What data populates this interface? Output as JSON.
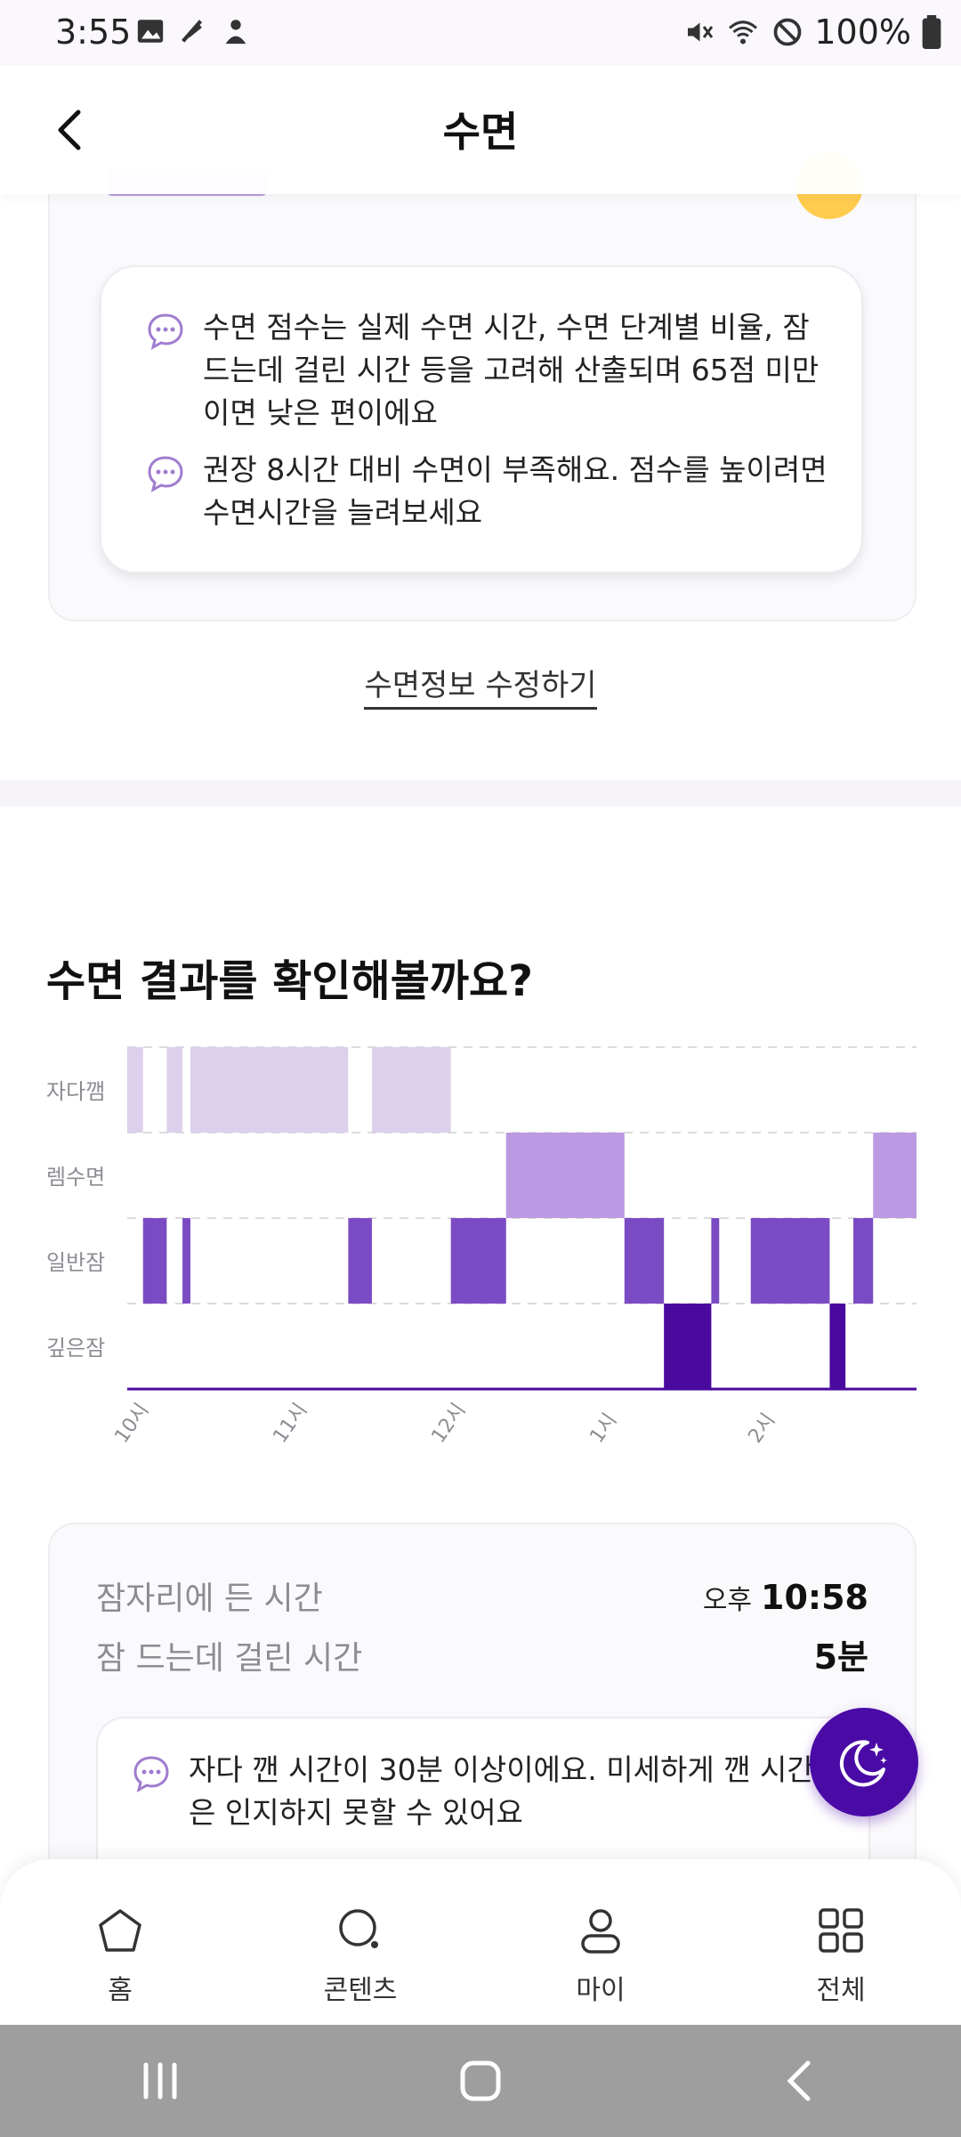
{
  "status_bar": {
    "time": "3:55",
    "battery": "100%"
  },
  "header": {
    "title": "수면"
  },
  "score_card": {
    "tips": [
      "수면 점수는 실제 수면 시간, 수면 단계별 비율, 잠드는데 걸린 시간 등을 고려해 산출되며 65점 미만이면 낮은 편이에요",
      "권장 8시간 대비 수면이 부족해요. 점수를 높이려면 수면시간을 늘려보세요"
    ]
  },
  "edit_link": "수면정보 수정하기",
  "result_section": {
    "title": "수면 결과를 확인해볼까요?"
  },
  "chart_data": {
    "type": "hypnogram",
    "stages": [
      "자다깸",
      "렘수면",
      "일반잠",
      "깊은잠"
    ],
    "x_ticks": [
      "10시",
      "11시",
      "12시",
      "1시",
      "2시"
    ],
    "segments": [
      {
        "stage": "자다깸",
        "start": 0.0,
        "end": 0.02
      },
      {
        "stage": "일반잠",
        "start": 0.02,
        "end": 0.05
      },
      {
        "stage": "자다깸",
        "start": 0.05,
        "end": 0.07
      },
      {
        "stage": "일반잠",
        "start": 0.07,
        "end": 0.08
      },
      {
        "stage": "자다깸",
        "start": 0.08,
        "end": 0.28
      },
      {
        "stage": "일반잠",
        "start": 0.28,
        "end": 0.31
      },
      {
        "stage": "자다깸",
        "start": 0.31,
        "end": 0.41
      },
      {
        "stage": "일반잠",
        "start": 0.41,
        "end": 0.48
      },
      {
        "stage": "렘수면",
        "start": 0.48,
        "end": 0.63
      },
      {
        "stage": "일반잠",
        "start": 0.63,
        "end": 0.68
      },
      {
        "stage": "깊은잠",
        "start": 0.68,
        "end": 0.74
      },
      {
        "stage": "일반잠",
        "start": 0.74,
        "end": 0.75
      },
      {
        "stage": "일반잠",
        "start": 0.79,
        "end": 0.89
      },
      {
        "stage": "깊은잠",
        "start": 0.89,
        "end": 0.91
      },
      {
        "stage": "일반잠",
        "start": 0.92,
        "end": 0.945
      },
      {
        "stage": "렘수면",
        "start": 0.945,
        "end": 1.0
      }
    ],
    "colors": {
      "자다깸": "#ddd0ec",
      "렘수면": "#bb9ae3",
      "일반잠": "#7b4bc4",
      "깊은잠": "#4a0a9e"
    }
  },
  "summary": {
    "bedtime_label": "잠자리에 든 시간",
    "bedtime_ampm": "오후",
    "bedtime_value": "10:58",
    "latency_label": "잠 드는데 걸린 시간",
    "latency_value": "5분",
    "tip": "자다 깬 시간이 30분 이상이에요. 미세하게 깬 시간은 인지하지 못할 수 있어요"
  },
  "bottom_nav": [
    {
      "label": "홈",
      "icon": "home-icon"
    },
    {
      "label": "콘텐츠",
      "icon": "search-icon"
    },
    {
      "label": "마이",
      "icon": "person-icon"
    },
    {
      "label": "전체",
      "icon": "grid-icon"
    }
  ]
}
